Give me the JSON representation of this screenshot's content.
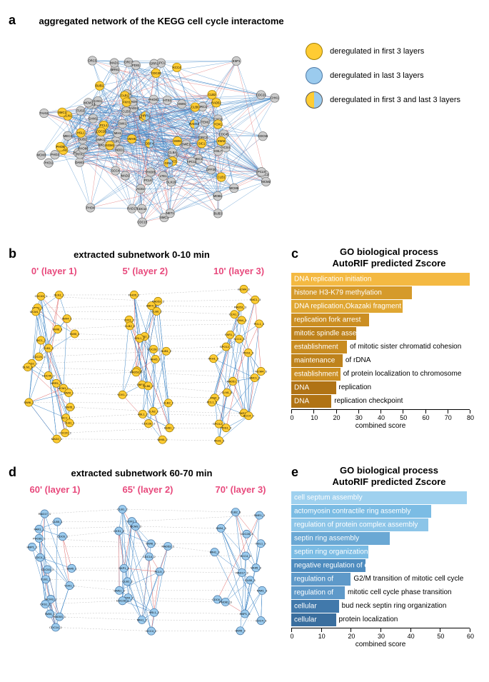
{
  "panel_a": {
    "tag": "a",
    "title": "aggregated network of the KEGG cell cycle interactome",
    "legend": [
      {
        "label": "deregulated in first 3 layers",
        "fill": "#ffcc33",
        "stroke": "#a07d00"
      },
      {
        "label": "deregulated in last 3 layers",
        "fill": "#9bcbee",
        "stroke": "#4b78a5"
      },
      {
        "label": "deregulated in first 3 and last 3 layers",
        "fill": "split",
        "stroke": "#555555"
      }
    ],
    "colors": {
      "neutral_node_fill": "#cccccc",
      "neutral_node_stroke": "#777777",
      "yellow_node_fill": "#ffcc33",
      "yellow_node_stroke": "#a07d00",
      "blue_node_fill": "#9bcbee",
      "blue_node_stroke": "#4b78a5",
      "edge_blue": "#3d85c6",
      "edge_red": "#e06666",
      "label_size": 4.3
    },
    "node_labels_yellow": [
      "SWI6",
      "CDC5",
      "SWI4",
      "SGM1",
      "CLN1",
      "PCL1",
      "CLB1",
      "FAR1",
      "RAD51",
      "CLN2",
      "CLB6",
      "HSL1",
      "KCC4",
      "SMC1",
      "BUB1",
      "WHI5",
      "YOX1",
      "FKH1",
      "CDC20",
      "CDC28",
      "CLB2",
      "SIC1",
      "PHO5"
    ],
    "node_labels_both": [
      "MCM1",
      "HRR1",
      "GIN4",
      "DBF4",
      "RAD53"
    ],
    "node_labels_neutral": [
      "MEC3",
      "MEC1",
      "PHO12",
      "CDC7",
      "DDC1",
      "RAD17",
      "RAD24",
      "LCD1",
      "RAD9",
      "FUS3",
      "KSS1",
      "CHK1",
      "DFF20",
      "TEM1",
      "DAM1",
      "MPS1",
      "BUB3",
      "SPC42",
      "DAM1",
      "MOB1",
      "SCC4",
      "SCC2",
      "SMC3",
      "SMK1",
      "CAK1",
      "APC1",
      "APC11",
      "TUP1",
      "YCS4",
      "BRN1",
      "CYC8",
      "RFX1",
      "PHO11",
      "PHO80",
      "PHO85",
      "PHO81",
      "CDC14",
      "ESP1",
      "CDC23",
      "GRR1",
      "SWI1",
      "MAD2",
      "SLK19",
      "MAD1",
      "CDC15",
      "CDC45",
      "SPO12",
      "MCM2",
      "MCM3",
      "MCM7",
      "MCM6",
      "ORC1",
      "ORC2",
      "ORC3",
      "ORC5",
      "NET1",
      "MBP1",
      "SWE1",
      "TAH11",
      "SWI5",
      "MIH1",
      "ACE2",
      "HSL7",
      "LTE1",
      "HTS1",
      "CLB4",
      "CLB3",
      "NDD1",
      "BUB2",
      "CDC55",
      "PHO2",
      "PHO4",
      "PDS1",
      "PCL6",
      "PCL9"
    ]
  },
  "panel_b": {
    "tag": "b",
    "title": "extracted subnetwork 0-10 min",
    "layer_color": "#e84a7d",
    "layers": [
      "0' (layer 1)",
      "5' (layer 2)",
      "10' (layer 3)"
    ],
    "node_fill": "#ffcc33",
    "node_stroke": "#a07d00",
    "edge_blue": "#3d85c6",
    "edge_red": "#e06666",
    "edge_gray": "#bdbdbd",
    "labels": [
      "DLN1",
      "PHO5",
      "MCM4",
      "CDC45",
      "RAD53",
      "SMC1",
      "HRR1",
      "DBF4",
      "RAD51",
      "MCM1",
      "CLB6",
      "CLN1",
      "SWI4",
      "YOX1",
      "GIN4",
      "SWI6",
      "CLB2",
      "PCL1",
      "SWI5",
      "CLN2",
      "FAR1",
      "SIC1",
      "HSL1",
      "KCC4",
      "CLB1",
      "CDC28",
      "SPO12",
      "CDC20",
      "BUB1",
      "PDS1",
      "MAD2",
      "WHI5",
      "FKH1"
    ]
  },
  "panel_c": {
    "tag": "c",
    "title_line1": "GO biological process",
    "title_line2": "AutoRIF predicted Zscore",
    "axis_label": "combined score",
    "xmax": 80,
    "xticks": [
      0,
      10,
      20,
      30,
      40,
      50,
      60,
      70,
      80
    ],
    "palette": [
      "#f4b942",
      "#d59a2b",
      "#e0a733",
      "#cb8e22",
      "#be821c",
      "#c98c21",
      "#be821c",
      "#cb8e22",
      "#b07315",
      "#b07315"
    ],
    "bars": [
      {
        "label": "DNA replication initiation",
        "value": 80,
        "inside": true
      },
      {
        "label": "histone H3-K79 methylation",
        "value": 54,
        "inside": true
      },
      {
        "label": "DNA replication,Okazaki fragment processing",
        "value": 50,
        "inside": true
      },
      {
        "label": "replication fork arrest",
        "value": 35,
        "inside": true
      },
      {
        "label": "mitotic spindle assembly checkpoint",
        "value": 29,
        "inside": true
      },
      {
        "label": "establishment of mitotic sister chromatid cohesion",
        "value": 25,
        "inside": false,
        "split": 13
      },
      {
        "label": "maintenance of rDNA",
        "value": 23,
        "inside": false,
        "split": 11
      },
      {
        "label": "establishment of protein localization to chromosome",
        "value": 22,
        "inside": false,
        "split": 13
      },
      {
        "label": "DNA replication",
        "value": 20,
        "inside": false,
        "split": 4
      },
      {
        "label": "DNA replication checkpoint",
        "value": 18,
        "inside": false,
        "split": 4
      }
    ]
  },
  "panel_d": {
    "tag": "d",
    "title": "extracted subnetwork 60-70 min",
    "layer_color": "#e84a7d",
    "layers": [
      "60' (layer 1)",
      "65' (layer 2)",
      "70' (layer 3)"
    ],
    "node_fill": "#9bcbee",
    "node_stroke": "#4b78a5",
    "edge_blue": "#3d85c6",
    "edge_red": "#e06666",
    "edge_gray": "#bdbdbd",
    "labels": [
      "RAD17",
      "CLB1",
      "CLB2",
      "CLB5",
      "YOX1",
      "SWE1",
      "FAR1",
      "MCM3",
      "SWI4",
      "CDC6",
      "CKS1",
      "CDC28",
      "PHO81",
      "SWI6",
      "HSL1",
      "HBP1",
      "RAD53",
      "MIH1",
      "CDC4",
      "CDC14",
      "KCC4",
      "SWI5",
      "SKP1",
      "WHI5",
      "CDC53",
      "PCL9"
    ]
  },
  "panel_e": {
    "tag": "e",
    "title_line1": "GO biological process",
    "title_line2": "AutoRIF predicted Zscore",
    "axis_label": "combined score",
    "xmax": 60,
    "xticks": [
      0,
      10,
      20,
      30,
      40,
      50,
      60
    ],
    "palette": [
      "#9fd1ef",
      "#7bbce4",
      "#8cc5e8",
      "#6aa8d4",
      "#7bbce4",
      "#4e8cbf",
      "#5e99c9",
      "#5e99c9",
      "#4179ab",
      "#3a6e9e"
    ],
    "bars": [
      {
        "label": "cell septum assembly",
        "value": 59,
        "inside": true
      },
      {
        "label": "actomyosin contractile ring assembly",
        "value": 47,
        "inside": true
      },
      {
        "label": "regulation of protein complex assembly",
        "value": 46,
        "inside": true
      },
      {
        "label": "septin ring assembly",
        "value": 33,
        "inside": true
      },
      {
        "label": "septin ring organization",
        "value": 26,
        "inside": true
      },
      {
        "label": "negative regulation of exit from mitosis",
        "value": 25,
        "inside": true
      },
      {
        "label": "regulation of G2/M transition of mitotic cell cycle",
        "value": 20,
        "inside": false,
        "split": 13
      },
      {
        "label": "regulation of mitotic cell cycle phase transition",
        "value": 18,
        "inside": false,
        "split": 13
      },
      {
        "label": "cellular bud neck septin ring organization",
        "value": 16,
        "inside": false,
        "split": 8
      },
      {
        "label": "cellular protein localization",
        "value": 15,
        "inside": false,
        "split": 8
      }
    ]
  }
}
